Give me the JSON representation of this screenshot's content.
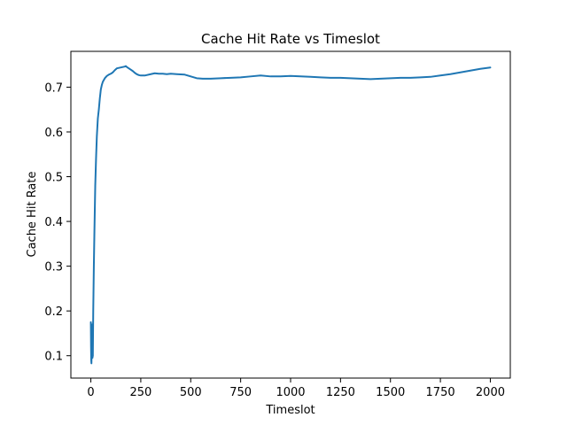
{
  "chart_data": {
    "type": "line",
    "title": "Cache Hit Rate vs Timeslot",
    "xlabel": "Timeslot",
    "ylabel": "Cache Hit Rate",
    "xlim": [
      -100,
      2100
    ],
    "ylim": [
      0.05,
      0.78
    ],
    "xticks": [
      0,
      250,
      500,
      750,
      1000,
      1250,
      1500,
      1750,
      2000
    ],
    "yticks": [
      0.1,
      0.2,
      0.3,
      0.4,
      0.5,
      0.6,
      0.7
    ],
    "xtick_labels": [
      "0",
      "250",
      "500",
      "750",
      "1000",
      "1250",
      "1500",
      "1750",
      "2000"
    ],
    "ytick_labels": [
      "0.1",
      "0.2",
      "0.3",
      "0.4",
      "0.5",
      "0.6",
      "0.7"
    ],
    "grid": false,
    "legend": "none",
    "series": [
      {
        "color": "#1f77b4",
        "x": [
          0,
          1,
          2,
          3,
          4,
          5,
          6,
          8,
          10,
          12,
          15,
          18,
          22,
          26,
          30,
          35,
          40,
          45,
          50,
          55,
          60,
          70,
          80,
          90,
          100,
          110,
          120,
          130,
          140,
          150,
          160,
          170,
          175,
          180,
          190,
          200,
          210,
          220,
          230,
          240,
          250,
          270,
          300,
          320,
          340,
          360,
          380,
          400,
          430,
          470,
          500,
          530,
          560,
          600,
          650,
          700,
          750,
          800,
          850,
          900,
          950,
          1000,
          1050,
          1100,
          1150,
          1200,
          1250,
          1300,
          1350,
          1400,
          1450,
          1500,
          1550,
          1600,
          1650,
          1700,
          1750,
          1800,
          1850,
          1900,
          1950,
          2000
        ],
        "y": [
          0.175,
          0.12,
          0.09,
          0.083,
          0.11,
          0.16,
          0.17,
          0.095,
          0.1,
          0.2,
          0.3,
          0.38,
          0.48,
          0.54,
          0.59,
          0.63,
          0.65,
          0.675,
          0.695,
          0.705,
          0.712,
          0.72,
          0.725,
          0.728,
          0.73,
          0.733,
          0.738,
          0.742,
          0.743,
          0.744,
          0.745,
          0.746,
          0.747,
          0.745,
          0.742,
          0.739,
          0.736,
          0.732,
          0.729,
          0.727,
          0.726,
          0.726,
          0.729,
          0.731,
          0.73,
          0.73,
          0.729,
          0.73,
          0.729,
          0.728,
          0.724,
          0.72,
          0.719,
          0.719,
          0.72,
          0.721,
          0.722,
          0.724,
          0.726,
          0.724,
          0.724,
          0.725,
          0.724,
          0.723,
          0.722,
          0.721,
          0.721,
          0.72,
          0.719,
          0.718,
          0.719,
          0.72,
          0.721,
          0.721,
          0.722,
          0.723,
          0.726,
          0.729,
          0.733,
          0.737,
          0.741,
          0.744
        ]
      }
    ]
  }
}
